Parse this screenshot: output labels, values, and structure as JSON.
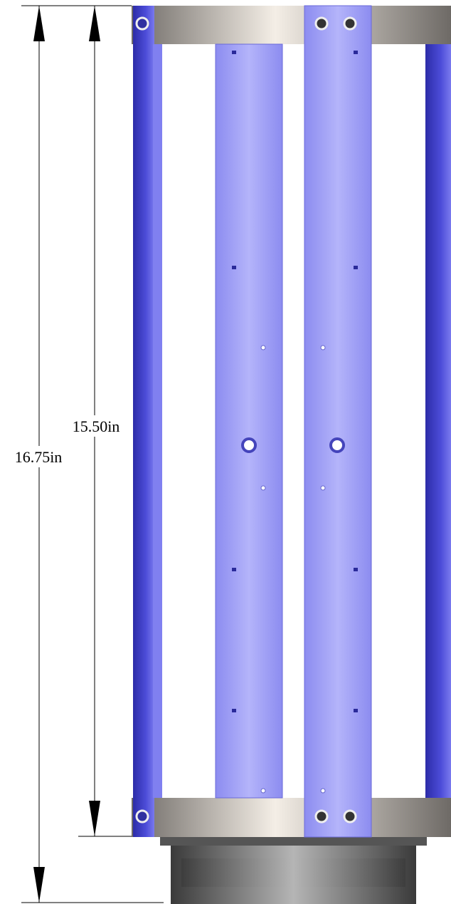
{
  "dimensions": [
    {
      "label": "16.75in"
    },
    {
      "label": "15.50in"
    }
  ]
}
